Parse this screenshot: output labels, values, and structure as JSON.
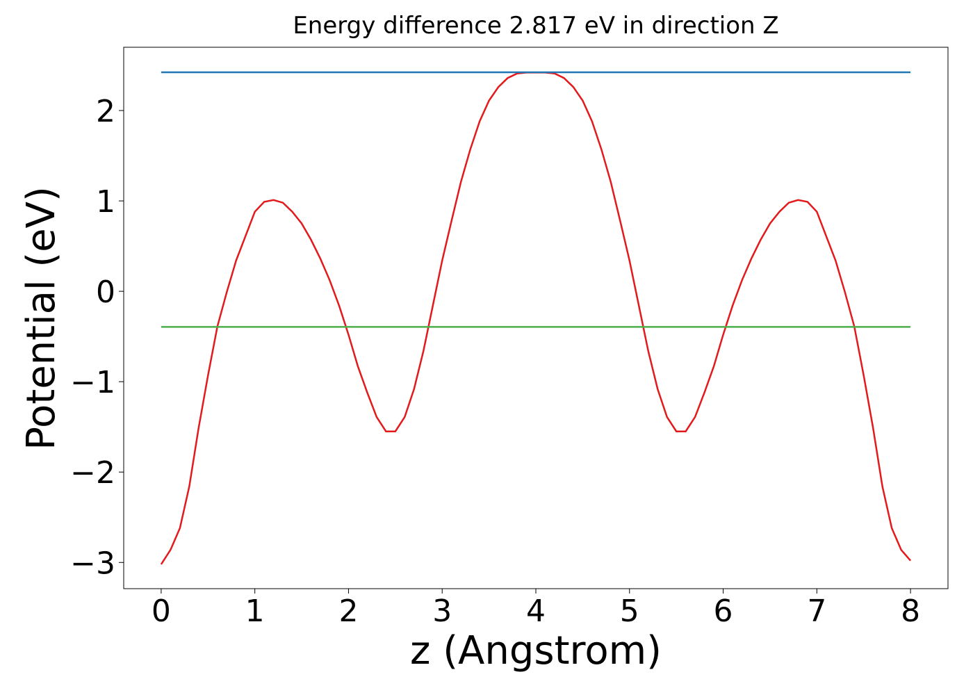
{
  "chart_data": {
    "type": "line",
    "title": "Energy difference 2.817 eV in direction Z",
    "x_label": "z (Angstrom)",
    "y_label": "Potential (eV)",
    "xlim": [
      -0.4,
      8.4
    ],
    "ylim": [
      -3.29,
      2.7
    ],
    "xticks": [
      0,
      1,
      2,
      3,
      4,
      5,
      6,
      7,
      8
    ],
    "yticks": [
      {
        "value": -3,
        "label": "−3"
      },
      {
        "value": -2,
        "label": "−2"
      },
      {
        "value": -1,
        "label": "−1"
      },
      0,
      1,
      2
    ],
    "grid": false,
    "series": [
      {
        "color": "#e31a1c",
        "x": [
          0,
          0.1,
          0.2,
          0.3,
          0.4,
          0.5,
          0.6,
          0.7,
          0.8,
          0.9,
          1,
          1.1,
          1.2,
          1.3,
          1.4,
          1.5,
          1.6,
          1.7,
          1.8,
          1.9,
          2,
          2.1,
          2.2,
          2.3,
          2.4,
          2.5,
          2.6,
          2.7,
          2.8,
          2.9,
          3,
          3.1,
          3.2,
          3.3,
          3.4,
          3.5,
          3.6,
          3.7,
          3.8,
          3.9,
          4,
          4.1,
          4.2,
          4.3,
          4.4,
          4.5,
          4.6,
          4.7,
          4.8,
          4.9,
          5,
          5.1,
          5.2,
          5.3,
          5.4,
          5.5,
          5.6,
          5.7,
          5.8,
          5.9,
          6,
          6.1,
          6.2,
          6.3,
          6.4,
          6.5,
          6.6,
          6.7,
          6.8,
          6.9,
          7,
          7.1,
          7.2,
          7.3,
          7.4,
          7.5,
          7.6,
          7.7,
          7.8,
          7.9,
          8
        ],
        "values": [
          -3.02,
          -2.86,
          -2.62,
          -2.16,
          -1.51,
          -0.93,
          -0.39,
          -0.01,
          0.34,
          0.61,
          0.88,
          0.99,
          1.01,
          0.98,
          0.88,
          0.75,
          0.57,
          0.36,
          0.12,
          -0.16,
          -0.48,
          -0.83,
          -1.12,
          -1.39,
          -1.55,
          -1.55,
          -1.39,
          -1.08,
          -0.66,
          -0.16,
          0.34,
          0.78,
          1.21,
          1.57,
          1.88,
          2.11,
          2.26,
          2.36,
          2.41,
          2.42,
          2.42,
          2.42,
          2.41,
          2.36,
          2.26,
          2.11,
          1.88,
          1.57,
          1.21,
          0.78,
          0.34,
          -0.16,
          -0.66,
          -1.08,
          -1.39,
          -1.55,
          -1.55,
          -1.39,
          -1.12,
          -0.83,
          -0.48,
          -0.16,
          0.12,
          0.36,
          0.57,
          0.75,
          0.88,
          0.98,
          1.01,
          0.99,
          0.88,
          0.61,
          0.34,
          -0.01,
          -0.39,
          -0.93,
          -1.51,
          -2.16,
          -2.62,
          -2.86,
          -2.98
        ]
      },
      {
        "color": "#1f77b4",
        "x": [
          0,
          8
        ],
        "values": [
          2.423,
          2.423
        ]
      },
      {
        "color": "#4daf4a",
        "x": [
          0,
          8
        ],
        "values": [
          -0.394,
          -0.394
        ]
      }
    ]
  }
}
